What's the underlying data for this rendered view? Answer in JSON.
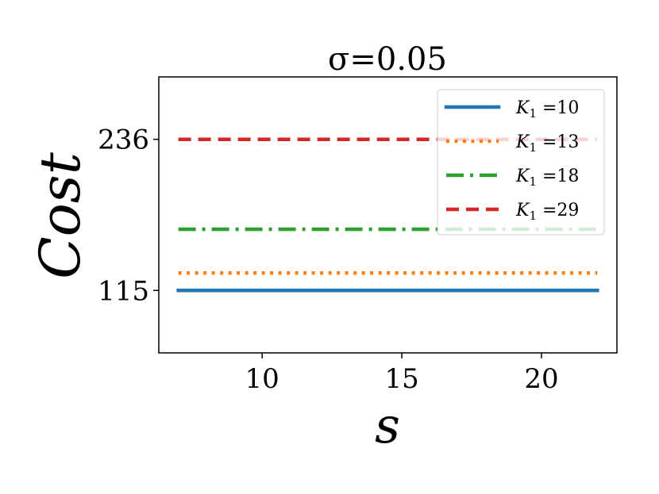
{
  "chart_data": {
    "type": "line",
    "title": "σ=0.05",
    "xlabel": "s",
    "ylabel": "Cost",
    "x": [
      7,
      22
    ],
    "xlim": [
      6.3,
      22.7
    ],
    "ylim": [
      65,
      286
    ],
    "xticks": [
      10,
      15,
      20
    ],
    "yticks": [
      115,
      236
    ],
    "xtick_labels": [
      "10",
      "15",
      "20"
    ],
    "ytick_labels": [
      "115",
      "236"
    ],
    "grid": false,
    "legend_position": "top-right",
    "series": [
      {
        "name": "K1 =10",
        "name_main": "K",
        "name_sub": "1",
        "name_rest": " =10",
        "values": [
          115,
          115
        ],
        "color": "#1f77b4",
        "style": "solid"
      },
      {
        "name": "K1 =13",
        "name_main": "K",
        "name_sub": "1",
        "name_rest": " =13",
        "values": [
          129,
          129
        ],
        "color": "#ff7f0e",
        "style": "dotted"
      },
      {
        "name": "K1 =18",
        "name_main": "K",
        "name_sub": "1",
        "name_rest": " =18",
        "values": [
          164,
          164
        ],
        "color": "#2ca02c",
        "style": "dashdot"
      },
      {
        "name": "K1 =29",
        "name_main": "K",
        "name_sub": "1",
        "name_rest": " =29",
        "values": [
          236,
          236
        ],
        "color": "#d62728",
        "style": "dashed"
      }
    ]
  }
}
